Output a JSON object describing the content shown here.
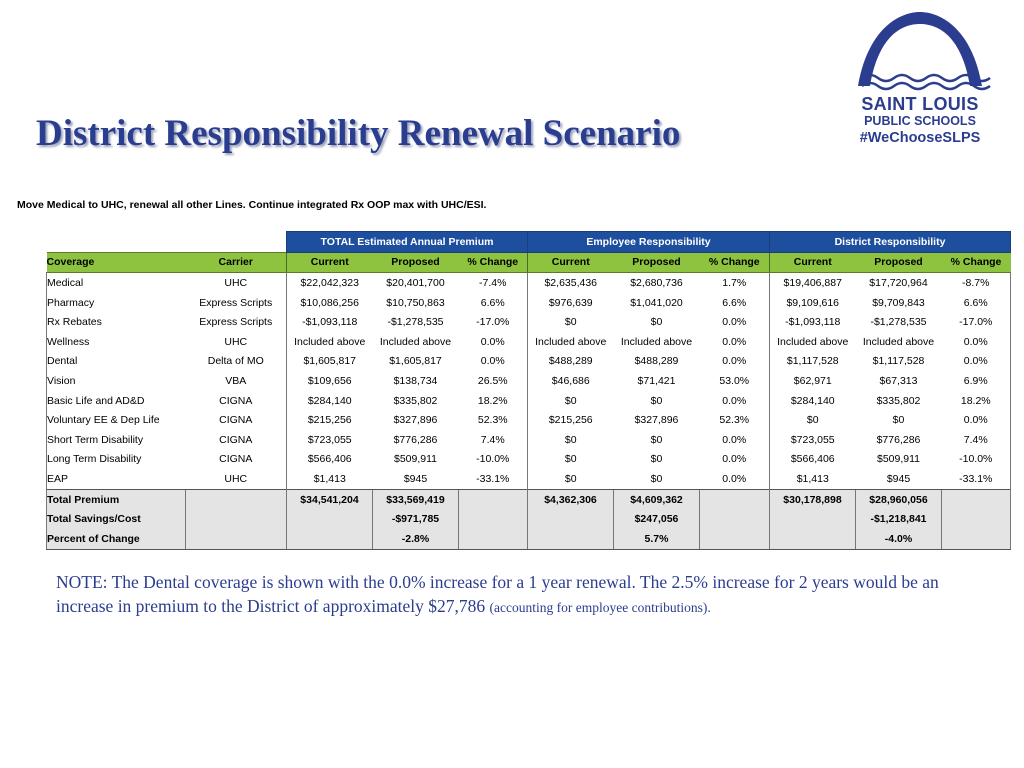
{
  "title": "District Responsibility Renewal Scenario",
  "logo": {
    "line1": "SAINT LOUIS",
    "line2": "PUBLIC SCHOOLS",
    "line3": "#WeChooseSLPS",
    "color": "#2b3d8f"
  },
  "subtitle": "Move Medical to UHC, renewal all other Lines.  Continue integrated Rx OOP max with UHC/ESI.",
  "table": {
    "groups": [
      "TOTAL Estimated Annual Premium",
      "Employee Responsibility",
      "District Responsibility"
    ],
    "headers": [
      "Coverage",
      "Carrier",
      "Current",
      "Proposed",
      "% Change",
      "Current",
      "Proposed",
      "% Change",
      "Current",
      "Proposed",
      "% Change"
    ],
    "rows": [
      [
        "Medical",
        "UHC",
        "$22,042,323",
        "$20,401,700",
        "-7.4%",
        "$2,635,436",
        "$2,680,736",
        "1.7%",
        "$19,406,887",
        "$17,720,964",
        "-8.7%"
      ],
      [
        "Pharmacy",
        "Express Scripts",
        "$10,086,256",
        "$10,750,863",
        "6.6%",
        "$976,639",
        "$1,041,020",
        "6.6%",
        "$9,109,616",
        "$9,709,843",
        "6.6%"
      ],
      [
        "Rx Rebates",
        "Express Scripts",
        "-$1,093,118",
        "-$1,278,535",
        "-17.0%",
        "$0",
        "$0",
        "0.0%",
        "-$1,093,118",
        "-$1,278,535",
        "-17.0%"
      ],
      [
        "Wellness",
        "UHC",
        "Included above",
        "Included above",
        "0.0%",
        "Included above",
        "Included above",
        "0.0%",
        "Included above",
        "Included above",
        "0.0%"
      ],
      [
        "Dental",
        "Delta of MO",
        "$1,605,817",
        "$1,605,817",
        "0.0%",
        "$488,289",
        "$488,289",
        "0.0%",
        "$1,117,528",
        "$1,117,528",
        "0.0%"
      ],
      [
        "Vision",
        "VBA",
        "$109,656",
        "$138,734",
        "26.5%",
        "$46,686",
        "$71,421",
        "53.0%",
        "$62,971",
        "$67,313",
        "6.9%"
      ],
      [
        "Basic Life and AD&D",
        "CIGNA",
        "$284,140",
        "$335,802",
        "18.2%",
        "$0",
        "$0",
        "0.0%",
        "$284,140",
        "$335,802",
        "18.2%"
      ],
      [
        "Voluntary EE & Dep Life",
        "CIGNA",
        "$215,256",
        "$327,896",
        "52.3%",
        "$215,256",
        "$327,896",
        "52.3%",
        "$0",
        "$0",
        "0.0%"
      ],
      [
        "Short Term Disability",
        "CIGNA",
        "$723,055",
        "$776,286",
        "7.4%",
        "$0",
        "$0",
        "0.0%",
        "$723,055",
        "$776,286",
        "7.4%"
      ],
      [
        "Long Term Disability",
        "CIGNA",
        "$566,406",
        "$509,911",
        "-10.0%",
        "$0",
        "$0",
        "0.0%",
        "$566,406",
        "$509,911",
        "-10.0%"
      ],
      [
        "EAP",
        "UHC",
        "$1,413",
        "$945",
        "-33.1%",
        "$0",
        "$0",
        "0.0%",
        "$1,413",
        "$945",
        "-33.1%"
      ]
    ],
    "totals": [
      [
        "Total Premium",
        "",
        "$34,541,204",
        "$33,569,419",
        "",
        "$4,362,306",
        "$4,609,362",
        "",
        "$30,178,898",
        "$28,960,056",
        ""
      ],
      [
        "Total Savings/Cost",
        "",
        "",
        "-$971,785",
        "",
        "",
        "$247,056",
        "",
        "",
        "-$1,218,841",
        ""
      ],
      [
        "Percent of Change",
        "",
        "",
        "-2.8%",
        "",
        "",
        "5.7%",
        "",
        "",
        "-4.0%",
        ""
      ]
    ]
  },
  "note": {
    "main": "NOTE:  The Dental coverage is shown with the 0.0% increase for a 1 year renewal.  The 2.5% increase for 2 years would be an increase in premium to the District of approximately $27,786 ",
    "small": "(accounting for employee contributions)."
  },
  "colors": {
    "title": "#2b3d8f",
    "group_header_bg": "#1e4f9e",
    "column_header_bg": "#8dc33f",
    "totals_bg": "#e4e4e4"
  }
}
